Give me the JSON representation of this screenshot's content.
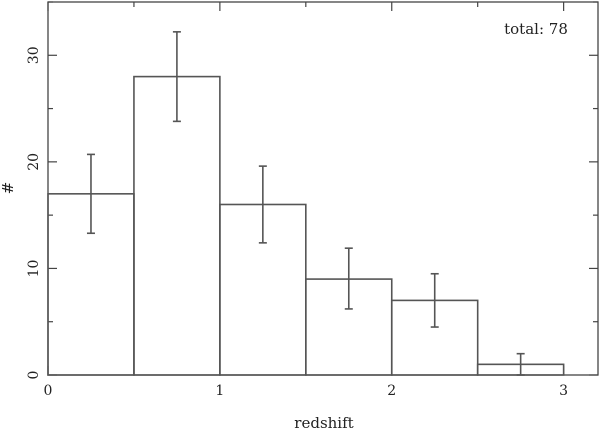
{
  "chart_data": {
    "type": "bar",
    "xlabel": "redshift",
    "ylabel": "#",
    "annotation": "total: 78",
    "xlim": [
      0,
      3.2
    ],
    "ylim": [
      0,
      35
    ],
    "x_ticks_major": [
      0,
      1,
      2,
      3
    ],
    "y_ticks_major": [
      0,
      10,
      20,
      30
    ],
    "bin_edges": [
      0,
      0.5,
      1.0,
      1.5,
      2.0,
      2.5,
      3.0
    ],
    "series": [
      {
        "values": [
          17,
          28,
          16,
          9,
          7,
          1
        ],
        "err_low": [
          13.3,
          23.8,
          12.4,
          6.2,
          4.5,
          0
        ],
        "err_high": [
          20.7,
          32.2,
          19.6,
          11.9,
          9.5,
          2.0
        ]
      }
    ]
  }
}
